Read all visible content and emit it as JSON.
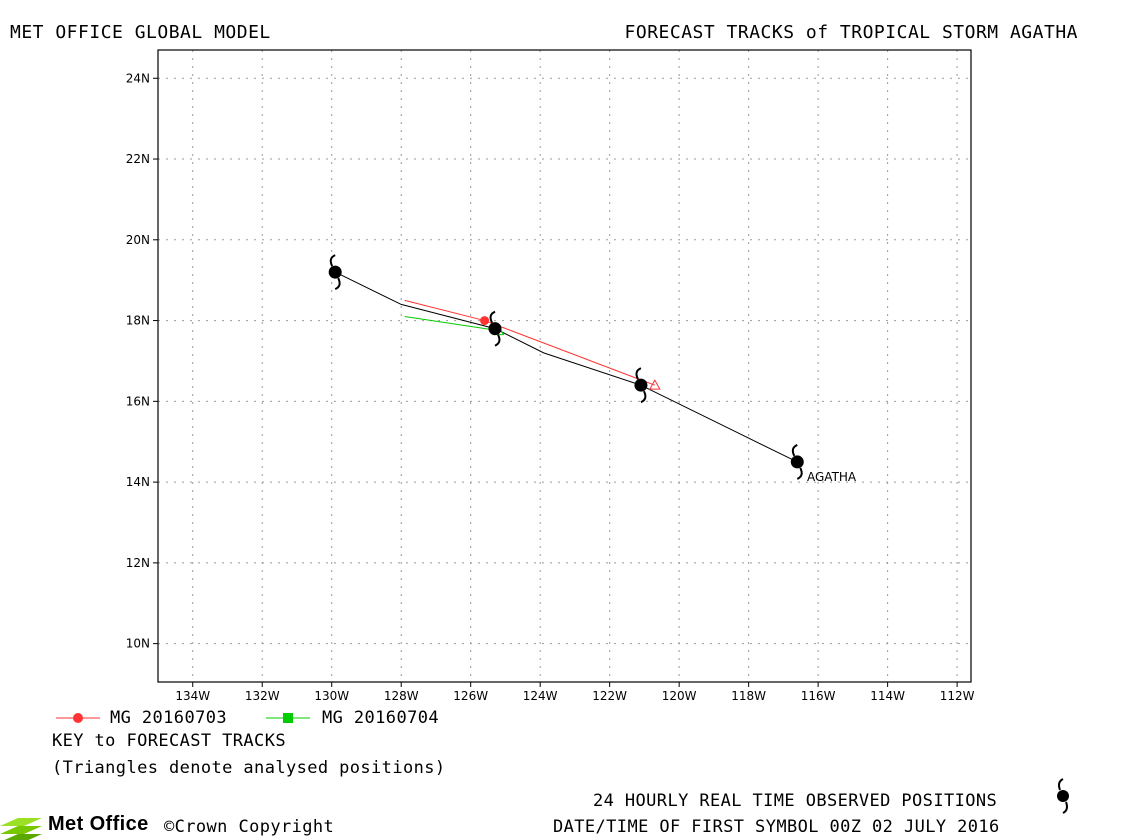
{
  "header": {
    "left": "MET OFFICE GLOBAL MODEL",
    "right": "FORECAST TRACKS of TROPICAL STORM AGATHA"
  },
  "map": {
    "lon_labels": [
      "134W",
      "132W",
      "130W",
      "128W",
      "126W",
      "124W",
      "122W",
      "120W",
      "118W",
      "116W",
      "114W",
      "112W"
    ],
    "lat_labels": [
      "10N",
      "12N",
      "14N",
      "16N",
      "18N",
      "20N",
      "22N",
      "24N"
    ],
    "storm_label": "AGATHA"
  },
  "chart_data": {
    "type": "map",
    "projection": "lat-lon",
    "lon_range": [
      -135.0,
      -111.6
    ],
    "lat_range": [
      9.05,
      24.7
    ],
    "grid": true,
    "observed_track": {
      "name": "24 HOURLY REAL TIME OBSERVED POSITIONS",
      "points": [
        {
          "lon": -116.6,
          "lat": 14.5,
          "symbol": true
        },
        {
          "lon": -118.5,
          "lat": 15.3,
          "symbol": false
        },
        {
          "lon": -121.1,
          "lat": 16.4,
          "symbol": true
        },
        {
          "lon": -123.9,
          "lat": 17.2,
          "symbol": false
        },
        {
          "lon": -125.3,
          "lat": 17.8,
          "symbol": true
        },
        {
          "lon": -128.0,
          "lat": 18.4,
          "symbol": false
        },
        {
          "lon": -129.9,
          "lat": 19.2,
          "symbol": true
        }
      ]
    },
    "forecast_tracks": [
      {
        "name": "MG 20160703",
        "color": "#ff3333",
        "points": [
          {
            "lon": -120.7,
            "lat": 16.4
          },
          {
            "lon": -125.6,
            "lat": 18.0
          },
          {
            "lon": -127.9,
            "lat": 18.5
          }
        ],
        "analysed_index": 0,
        "marker_index": 1
      },
      {
        "name": "MG 20160704",
        "color": "#00cc00",
        "points": [
          {
            "lon": -125.2,
            "lat": 17.75
          },
          {
            "lon": -127.9,
            "lat": 18.1
          }
        ],
        "analysed_index": 0,
        "marker_index": null
      }
    ]
  },
  "legend": {
    "items": [
      {
        "label": "MG 20160703",
        "color": "#ff3333",
        "marker": "circle"
      },
      {
        "label": "MG 20160704",
        "color": "#00cc00",
        "marker": "square"
      }
    ],
    "key_title": "KEY to FORECAST TRACKS",
    "key_note": "(Triangles denote analysed positions)"
  },
  "footer": {
    "observed": "24 HOURLY REAL TIME OBSERVED POSITIONS",
    "datetime": "DATE/TIME OF FIRST SYMBOL 00Z 02 JULY 2016",
    "logo": "Met Office",
    "copyright": "©Crown Copyright"
  }
}
